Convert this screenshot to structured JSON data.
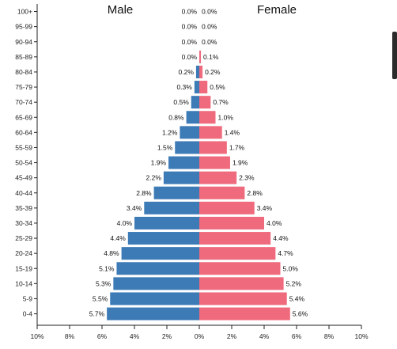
{
  "chart_data": {
    "type": "bar",
    "orientation": "horizontal",
    "categories": [
      "100+",
      "95-99",
      "90-94",
      "85-89",
      "80-84",
      "75-79",
      "70-74",
      "65-69",
      "60-64",
      "55-59",
      "50-54",
      "45-49",
      "40-44",
      "35-39",
      "30-34",
      "25-29",
      "20-24",
      "15-19",
      "10-14",
      "5-9",
      "0-4"
    ],
    "series": [
      {
        "name": "Male",
        "color": "#3d7bb7",
        "values": [
          0.0,
          0.0,
          0.0,
          0.0,
          0.2,
          0.3,
          0.5,
          0.8,
          1.2,
          1.5,
          1.9,
          2.2,
          2.8,
          3.4,
          4.0,
          4.4,
          4.8,
          5.1,
          5.3,
          5.5,
          5.7
        ],
        "labels": [
          "0.0%",
          "0.0%",
          "0.0%",
          "0.0%",
          "0.2%",
          "0.3%",
          "0.5%",
          "0.8%",
          "1.2%",
          "1.5%",
          "1.9%",
          "2.2%",
          "2.8%",
          "3.4%",
          "4.0%",
          "4.4%",
          "4.8%",
          "5.1%",
          "5.3%",
          "5.5%",
          "5.7%"
        ]
      },
      {
        "name": "Female",
        "color": "#ef6a7d",
        "values": [
          0.0,
          0.0,
          0.0,
          0.1,
          0.2,
          0.5,
          0.7,
          1.0,
          1.4,
          1.7,
          1.9,
          2.3,
          2.8,
          3.4,
          4.0,
          4.4,
          4.7,
          5.0,
          5.2,
          5.4,
          5.6
        ],
        "labels": [
          "0.0%",
          "0.0%",
          "0.0%",
          "0.1%",
          "0.2%",
          "0.5%",
          "0.7%",
          "1.0%",
          "1.4%",
          "1.7%",
          "1.9%",
          "2.3%",
          "2.8%",
          "3.4%",
          "4.0%",
          "4.4%",
          "4.7%",
          "5.0%",
          "5.2%",
          "5.4%",
          "5.6%"
        ]
      }
    ],
    "xlim": [
      -10,
      10
    ],
    "xticks": [
      "10%",
      "8%",
      "6%",
      "4%",
      "2%",
      "0%",
      "2%",
      "4%",
      "6%",
      "8%",
      "10%"
    ],
    "grid": false
  }
}
